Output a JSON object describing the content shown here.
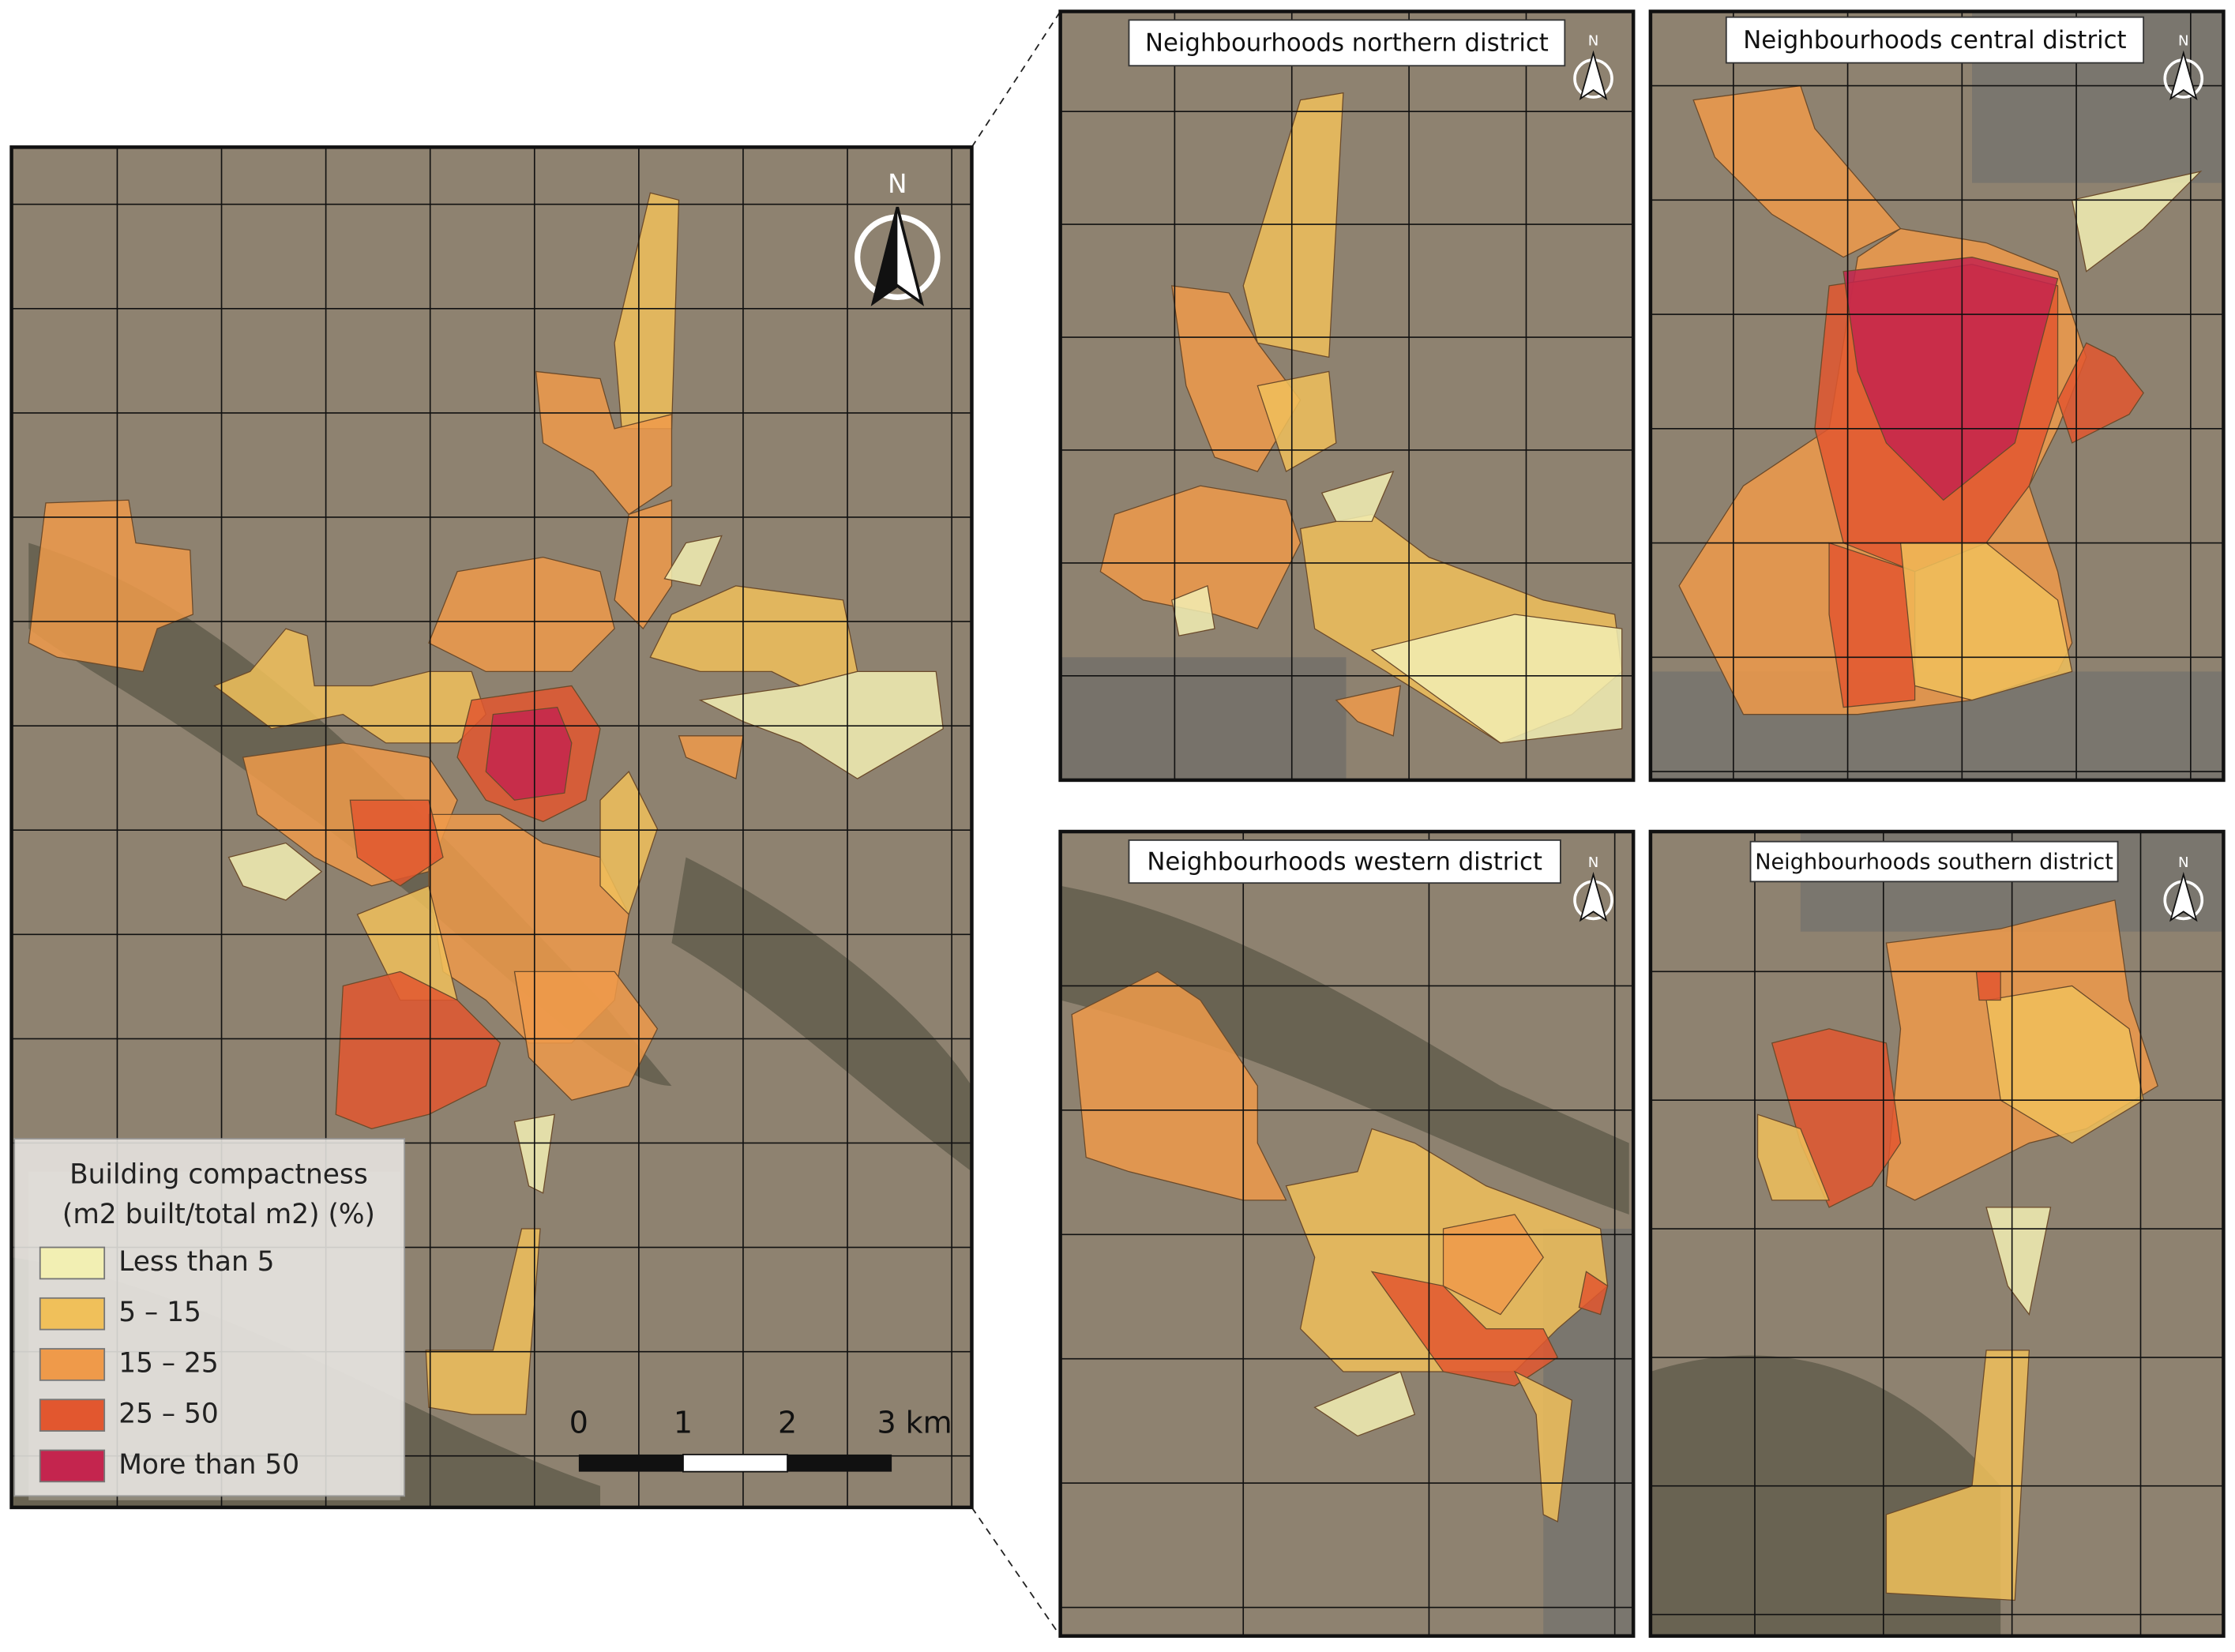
{
  "main_map": {
    "north": "N",
    "legend": {
      "title_line1": "Building compactness",
      "title_line2": "(m2 built/total m2) (%)",
      "items": [
        {
          "label": "Less than 5",
          "color": "#f2efb3"
        },
        {
          "label": "5 – 15",
          "color": "#f0c05a"
        },
        {
          "label": "15 – 25",
          "color": "#ef9a4a"
        },
        {
          "label": "25 – 50",
          "color": "#e2572f"
        },
        {
          "label": "More than 50",
          "color": "#c4254e"
        }
      ]
    },
    "scale_labels": [
      "0",
      "1",
      "2",
      "3 km"
    ]
  },
  "insets": [
    {
      "title": "Neighbourhoods northern district",
      "north": "N"
    },
    {
      "title": "Neighbourhoods central district",
      "north": "N"
    },
    {
      "title": "Neighbourhoods western district",
      "north": "N"
    },
    {
      "title": "Neighbourhoods southern district",
      "north": "N"
    }
  ]
}
